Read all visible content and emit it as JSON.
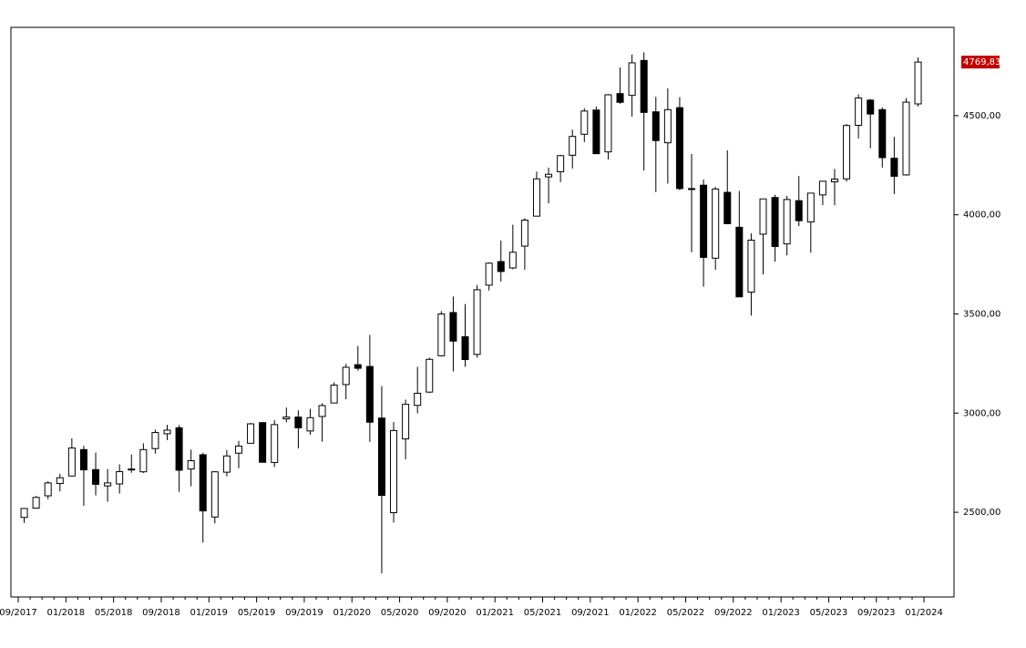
{
  "chart_data": {
    "type": "candlestick",
    "categories": [
      "09/2017",
      null,
      null,
      null,
      "01/2018",
      null,
      null,
      null,
      "05/2018",
      null,
      null,
      null,
      "09/2018",
      null,
      null,
      null,
      "01/2019",
      null,
      null,
      null,
      "05/2019",
      null,
      null,
      null,
      "09/2019",
      null,
      null,
      null,
      "01/2020",
      null,
      null,
      null,
      "05/2020",
      null,
      null,
      null,
      "09/2020",
      null,
      null,
      null,
      "01/2021",
      null,
      null,
      null,
      "05/2021",
      null,
      null,
      null,
      "09/2021",
      null,
      null,
      null,
      "01/2022",
      null,
      null,
      null,
      "05/2022",
      null,
      null,
      null,
      "09/2022",
      null,
      null,
      null,
      "01/2023",
      null,
      null,
      null,
      "05/2023",
      null,
      null,
      null,
      "09/2023",
      null,
      null,
      null,
      "01/2024"
    ],
    "open": [
      2474,
      2521,
      2583,
      2645,
      2683,
      2816,
      2715,
      2633,
      2643,
      2718,
      2704,
      2821,
      2896,
      2926,
      2718,
      2790,
      2476,
      2702,
      2798,
      2848,
      2952,
      2751,
      2971,
      2980,
      2910,
      2983,
      3051,
      3144,
      3244,
      3235,
      2975,
      2498,
      2870,
      3039,
      3106,
      3289,
      3507,
      3385,
      3296,
      3645,
      3764,
      3732,
      3842,
      3993,
      4191,
      4217,
      4300,
      4406,
      4528,
      4317,
      4611,
      4602,
      4778,
      4519,
      4363,
      4540,
      4130,
      4149,
      3781,
      4113,
      3937,
      3610,
      3902,
      4087,
      3853,
      4071,
      3964,
      4100,
      4166,
      4181,
      4451,
      4578,
      4530,
      4285,
      4201,
      4559,
      null
    ],
    "high": [
      2519,
      2582,
      2657,
      2694,
      2873,
      2835,
      2801,
      2718,
      2742,
      2791,
      2848,
      2917,
      2941,
      2940,
      2816,
      2800,
      2708,
      2814,
      2860,
      2950,
      2955,
      2965,
      3028,
      3014,
      3022,
      3050,
      3155,
      3248,
      3338,
      3394,
      3136,
      2955,
      3068,
      3233,
      3280,
      3514,
      3588,
      3550,
      3646,
      3760,
      3870,
      3950,
      3983,
      4218,
      4238,
      4302,
      4429,
      4537,
      4546,
      4609,
      4743,
      4808,
      4819,
      4595,
      4637,
      4593,
      4307,
      4178,
      4141,
      4325,
      4120,
      3906,
      4080,
      4101,
      4095,
      4195,
      4110,
      4170,
      4231,
      4458,
      4607,
      4584,
      4541,
      4393,
      4588,
      4793,
      null
    ],
    "low": [
      2446,
      2520,
      2566,
      2605,
      2683,
      2533,
      2585,
      2553,
      2594,
      2699,
      2698,
      2796,
      2864,
      2603,
      2631,
      2347,
      2444,
      2681,
      2722,
      2848,
      2751,
      2728,
      2953,
      2822,
      2891,
      2856,
      3050,
      3070,
      3214,
      2855,
      2192,
      2448,
      2767,
      2999,
      3102,
      3285,
      3210,
      3234,
      3280,
      3618,
      3663,
      3725,
      3723,
      3993,
      4057,
      4165,
      4233,
      4367,
      4306,
      4279,
      4560,
      4495,
      4223,
      4115,
      4157,
      4124,
      3811,
      3637,
      3723,
      3955,
      3585,
      3492,
      3699,
      3764,
      3795,
      3943,
      3809,
      4049,
      4048,
      4167,
      4385,
      4335,
      4238,
      4104,
      4197,
      4546,
      null
    ],
    "close": [
      2519,
      2575,
      2648,
      2674,
      2824,
      2714,
      2641,
      2648,
      2705,
      2718,
      2816,
      2902,
      2914,
      2712,
      2760,
      2507,
      2704,
      2784,
      2834,
      2946,
      2752,
      2942,
      2980,
      2926,
      2977,
      3038,
      3141,
      3231,
      3226,
      2954,
      2585,
      2912,
      3044,
      3100,
      3271,
      3500,
      3363,
      3270,
      3622,
      3756,
      3714,
      3811,
      3973,
      4181,
      4204,
      4298,
      4395,
      4523,
      4308,
      4605,
      4567,
      4766,
      4516,
      4374,
      4530,
      4132,
      4132,
      3785,
      4130,
      3955,
      3586,
      3872,
      4080,
      3840,
      4077,
      3970,
      4109,
      4169,
      4180,
      4450,
      4589,
      4508,
      4288,
      4194,
      4568,
      4769.83,
      null
    ],
    "close_label": "4769,83",
    "up_color": "#ffffff",
    "down_color": "#000000",
    "label_color": "#c00000",
    "ylim": [
      2073,
      4945
    ],
    "yticks": [
      {
        "value": 2500,
        "label": "2500,00"
      },
      {
        "value": 3000,
        "label": "3000,00"
      },
      {
        "value": 3500,
        "label": "3500,00"
      },
      {
        "value": 4000,
        "label": "4000,00"
      },
      {
        "value": 4500,
        "label": "4500,00"
      }
    ]
  }
}
